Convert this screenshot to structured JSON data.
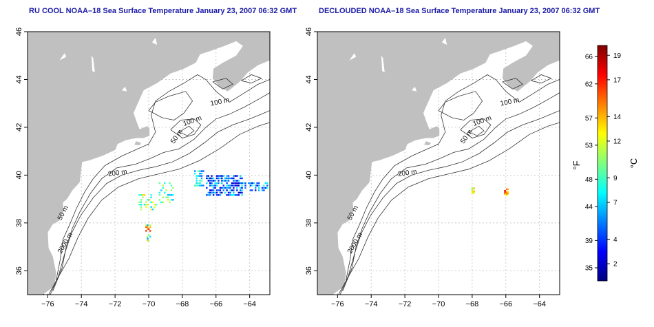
{
  "panels": [
    {
      "title": "RU COOL NOAA–18 Sea Surface Temperature January 23, 2007 06:32 GMT",
      "variant": "raw"
    },
    {
      "title": "DECLOUDED NOAA–18 Sea Surface Temperature January 23, 2007 06:32 GMT",
      "variant": "declouded"
    }
  ],
  "axes": {
    "lon_range": [
      -77.2,
      -62.8
    ],
    "lat_range": [
      35,
      46
    ],
    "x_ticks": [
      "−76",
      "−74",
      "−72",
      "−70",
      "−68",
      "−66",
      "−64"
    ],
    "x_tick_values": [
      -76,
      -74,
      -72,
      -70,
      -68,
      -66,
      -64
    ],
    "y_ticks": [
      "36",
      "38",
      "40",
      "42",
      "44",
      "46"
    ],
    "y_tick_values": [
      36,
      38,
      40,
      42,
      44,
      46
    ],
    "grid": "dotted"
  },
  "contour_labels": [
    {
      "text": "100 m"
    },
    {
      "text": "100 m"
    },
    {
      "text": "50 m"
    },
    {
      "text": "200 m"
    },
    {
      "text": "50 m"
    },
    {
      "text": "2000 m"
    }
  ],
  "colorbar": {
    "left_unit": "°F",
    "right_unit": "°C",
    "f_labels": [
      "66",
      "62",
      "57",
      "53",
      "48",
      "44",
      "39",
      "35"
    ],
    "c_labels": [
      "19",
      "17",
      "14",
      "12",
      "9",
      "7",
      "4",
      "2"
    ],
    "range_c": [
      0.6,
      19.8
    ]
  },
  "colors": {
    "land": "#c0c0c0",
    "ocean": "#ffffff",
    "title": "#1a1aa6",
    "contour": "#333333",
    "colormap": [
      "#00007f",
      "#0000ff",
      "#007fff",
      "#00ffff",
      "#7fff7f",
      "#ffff00",
      "#ff7f00",
      "#ff0000",
      "#7f0000"
    ]
  }
}
